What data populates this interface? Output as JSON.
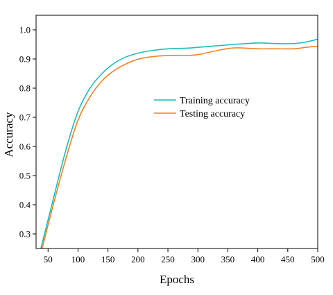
{
  "chart_data": {
    "type": "line",
    "title": "",
    "xlabel": "Epochs",
    "ylabel": "Accuracy",
    "xlim": [
      30,
      500
    ],
    "ylim": [
      0.25,
      1.05
    ],
    "x_ticks": [
      50,
      100,
      150,
      200,
      250,
      300,
      350,
      400,
      450,
      500
    ],
    "y_ticks": [
      0.3,
      0.4,
      0.5,
      0.6,
      0.7,
      0.8,
      0.9,
      1.0
    ],
    "grid": false,
    "legend_position": "center",
    "series": [
      {
        "name": "Training accuracy",
        "color": "#17BEBB",
        "x": [
          38,
          60,
          80,
          100,
          120,
          140,
          160,
          180,
          200,
          220,
          250,
          280,
          300,
          330,
          360,
          400,
          430,
          460,
          480,
          500
        ],
        "y": [
          0.25,
          0.43,
          0.59,
          0.72,
          0.8,
          0.85,
          0.885,
          0.907,
          0.92,
          0.928,
          0.935,
          0.937,
          0.94,
          0.945,
          0.95,
          0.955,
          0.953,
          0.953,
          0.958,
          0.968
        ]
      },
      {
        "name": "Testing accuracy",
        "color": "#F08225",
        "x": [
          40,
          60,
          80,
          100,
          120,
          140,
          160,
          180,
          200,
          220,
          250,
          280,
          300,
          330,
          360,
          400,
          430,
          460,
          480,
          500
        ],
        "y": [
          0.25,
          0.41,
          0.56,
          0.69,
          0.77,
          0.825,
          0.86,
          0.883,
          0.899,
          0.907,
          0.912,
          0.912,
          0.915,
          0.928,
          0.938,
          0.935,
          0.935,
          0.935,
          0.94,
          0.944
        ]
      }
    ]
  }
}
